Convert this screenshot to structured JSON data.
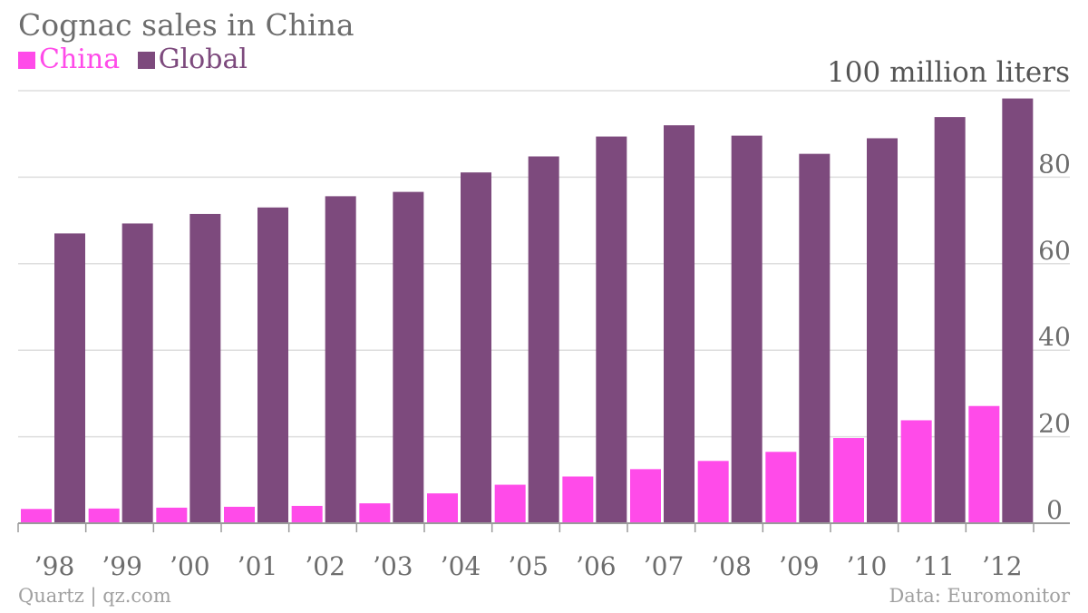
{
  "chart_data": {
    "type": "bar",
    "title": "Cognac sales in China",
    "unit_label": "100 million liters",
    "categories": [
      "’98",
      "’99",
      "’00",
      "’01",
      "’02",
      "’03",
      "’04",
      "’05",
      "’06",
      "’07",
      "’08",
      "’09",
      "’10",
      "’11",
      "’12"
    ],
    "series": [
      {
        "name": "China",
        "color": "#ff4be9",
        "values": [
          3.3,
          3.4,
          3.6,
          3.8,
          4.0,
          4.6,
          6.9,
          8.9,
          10.8,
          12.5,
          14.4,
          16.5,
          19.7,
          23.8,
          27.1
        ]
      },
      {
        "name": "Global",
        "color": "#7d4a7d",
        "values": [
          67.0,
          69.3,
          71.5,
          73.0,
          75.6,
          76.6,
          81.1,
          84.8,
          89.4,
          92.0,
          89.6,
          85.4,
          89.0,
          93.9,
          98.2
        ]
      }
    ],
    "yticks": [
      0,
      20,
      40,
      60,
      80
    ],
    "ylim": [
      0,
      100
    ],
    "grid": true,
    "y_axis_side": "right",
    "legend_position": "top-left"
  },
  "footer": {
    "source_left": "Quartz | qz.com",
    "source_right": "Data: Euromonitor"
  }
}
